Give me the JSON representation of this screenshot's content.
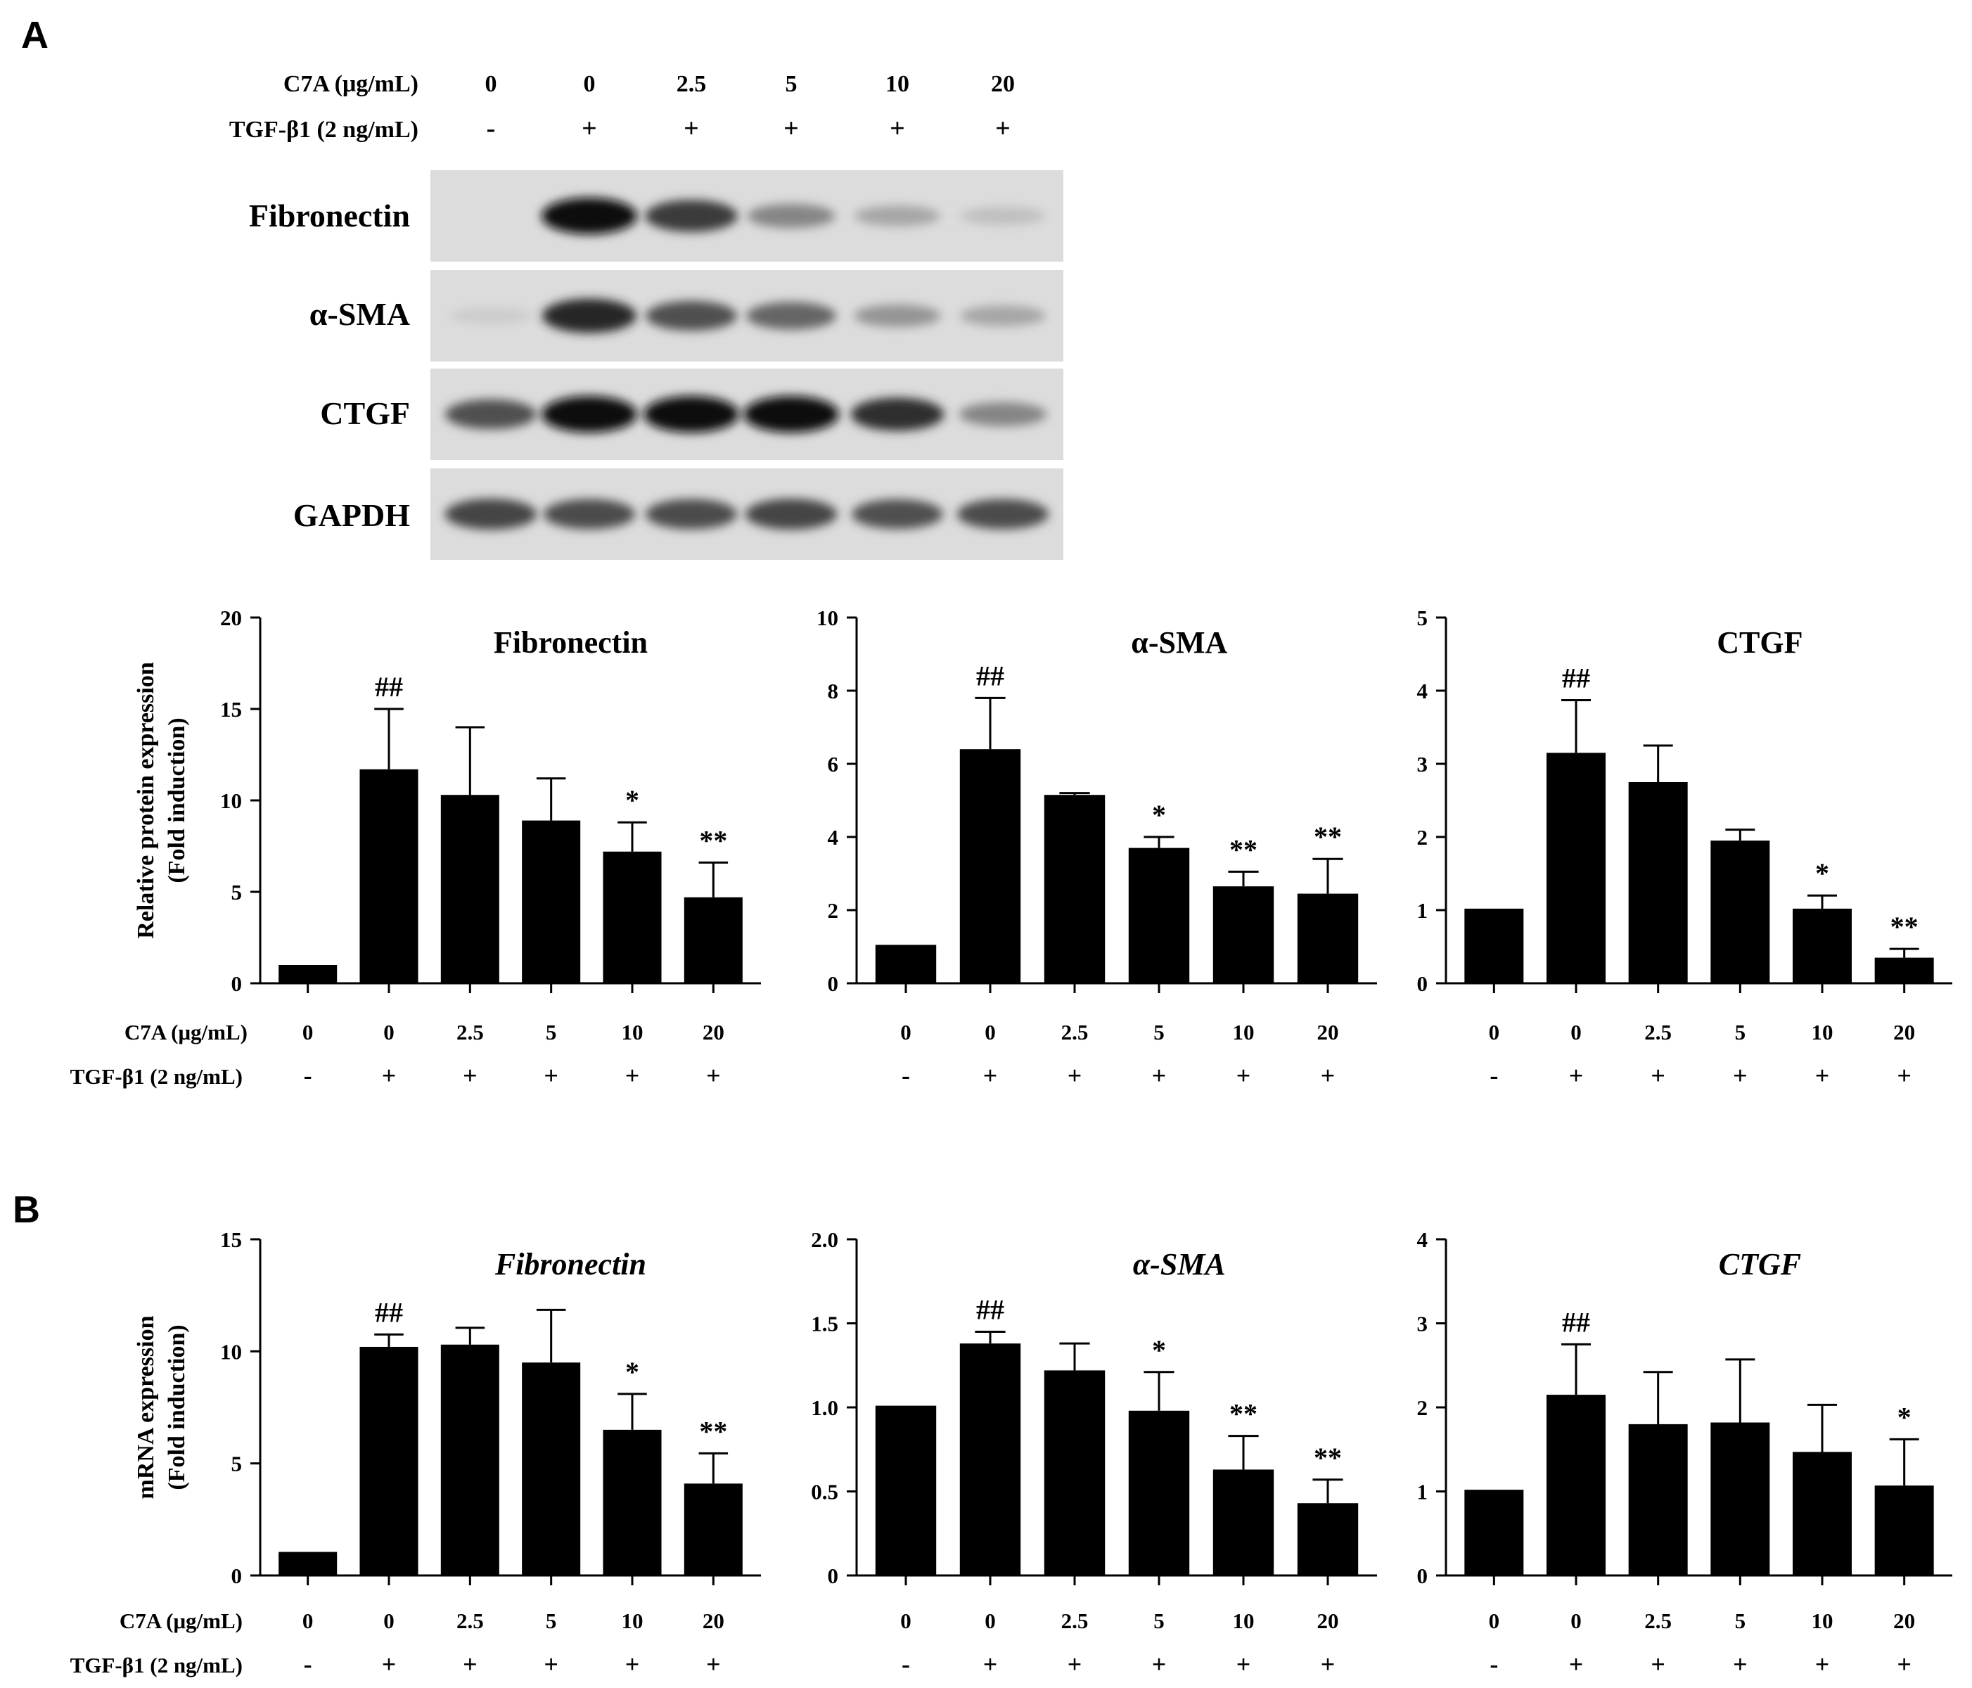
{
  "panels": {
    "a": "A",
    "b": "B"
  },
  "treatment": {
    "c7a_label": "C7A (μg/mL)",
    "tgf_label": "TGF-β1 (2 ng/mL)",
    "c7a_values": [
      "0",
      "0",
      "2.5",
      "5",
      "10",
      "20"
    ],
    "tgf_values": [
      "-",
      "+",
      "+",
      "+",
      "+",
      "+"
    ]
  },
  "blot": {
    "proteins": [
      "Fibronectin",
      "α-SMA",
      "CTGF",
      "GAPDH"
    ],
    "band_intensity": [
      [
        0.0,
        1.0,
        0.8,
        0.45,
        0.3,
        0.18
      ],
      [
        0.12,
        0.9,
        0.7,
        0.6,
        0.38,
        0.3
      ],
      [
        0.7,
        1.0,
        1.0,
        1.0,
        0.85,
        0.45
      ],
      [
        0.75,
        0.72,
        0.72,
        0.75,
        0.7,
        0.72
      ]
    ]
  },
  "chart_data": [
    {
      "type": "bar",
      "panel": "A",
      "title": "Fibronectin",
      "title_italic": false,
      "ylabel": [
        "Relative protein expression",
        "(Fold induction)"
      ],
      "ylim": [
        0,
        20
      ],
      "yticks": [
        "0",
        "5",
        "10",
        "15",
        "20"
      ],
      "ytick_values": [
        0,
        5,
        10,
        15,
        20
      ],
      "categories": [
        "0|-",
        "0|+",
        "2.5|+",
        "5|+",
        "10|+",
        "20|+"
      ],
      "values": [
        1.0,
        11.7,
        10.3,
        8.9,
        7.2,
        4.7
      ],
      "errors": [
        0,
        3.3,
        3.7,
        2.3,
        1.6,
        1.9
      ],
      "annotations": [
        "",
        "##",
        "",
        "",
        "*",
        "**"
      ]
    },
    {
      "type": "bar",
      "panel": "A",
      "title": "α-SMA",
      "title_italic": false,
      "ylabel": [],
      "ylim": [
        0,
        10
      ],
      "yticks": [
        "0",
        "2",
        "4",
        "6",
        "8",
        "10"
      ],
      "ytick_values": [
        0,
        2,
        4,
        6,
        8,
        10
      ],
      "categories": [
        "0|-",
        "0|+",
        "2.5|+",
        "5|+",
        "10|+",
        "20|+"
      ],
      "values": [
        1.05,
        6.4,
        5.15,
        3.7,
        2.65,
        2.45
      ],
      "errors": [
        0,
        1.4,
        0.05,
        0.3,
        0.4,
        0.95
      ],
      "annotations": [
        "",
        "##",
        "",
        "*",
        "**",
        "**"
      ]
    },
    {
      "type": "bar",
      "panel": "A",
      "title": "CTGF",
      "title_italic": false,
      "ylabel": [],
      "ylim": [
        0,
        5
      ],
      "yticks": [
        "0",
        "1",
        "2",
        "3",
        "4",
        "5"
      ],
      "ytick_values": [
        0,
        1,
        2,
        3,
        4,
        5
      ],
      "categories": [
        "0|-",
        "0|+",
        "2.5|+",
        "5|+",
        "10|+",
        "20|+"
      ],
      "values": [
        1.02,
        3.15,
        2.75,
        1.95,
        1.02,
        0.35
      ],
      "errors": [
        0,
        0.72,
        0.5,
        0.15,
        0.18,
        0.12
      ],
      "annotations": [
        "",
        "##",
        "",
        "",
        "*",
        "**"
      ]
    },
    {
      "type": "bar",
      "panel": "B",
      "title": "Fibronectin",
      "title_italic": true,
      "ylabel": [
        "mRNA expression",
        "(Fold induction)"
      ],
      "ylim": [
        0,
        15
      ],
      "yticks": [
        "0",
        "5",
        "10",
        "15"
      ],
      "ytick_values": [
        0,
        5,
        10,
        15
      ],
      "categories": [
        "0|-",
        "0|+",
        "2.5|+",
        "5|+",
        "10|+",
        "20|+"
      ],
      "values": [
        1.05,
        10.2,
        10.3,
        9.5,
        6.5,
        4.1
      ],
      "errors": [
        0,
        0.55,
        0.75,
        2.35,
        1.6,
        1.35
      ],
      "annotations": [
        "",
        "##",
        "",
        "",
        "*",
        "**"
      ]
    },
    {
      "type": "bar",
      "panel": "B",
      "title": "α-SMA",
      "title_italic": true,
      "ylabel": [],
      "ylim": [
        0,
        2.0
      ],
      "yticks": [
        "0",
        "0.5",
        "1.0",
        "1.5",
        "2.0"
      ],
      "ytick_values": [
        0,
        0.5,
        1.0,
        1.5,
        2.0
      ],
      "categories": [
        "0|-",
        "0|+",
        "2.5|+",
        "5|+",
        "10|+",
        "20|+"
      ],
      "values": [
        1.01,
        1.38,
        1.22,
        0.98,
        0.63,
        0.43
      ],
      "errors": [
        0,
        0.07,
        0.16,
        0.23,
        0.2,
        0.14
      ],
      "annotations": [
        "",
        "##",
        "",
        "*",
        "**",
        "**"
      ]
    },
    {
      "type": "bar",
      "panel": "B",
      "title": "CTGF",
      "title_italic": true,
      "ylabel": [],
      "ylim": [
        0,
        4
      ],
      "yticks": [
        "0",
        "1",
        "2",
        "3",
        "4"
      ],
      "ytick_values": [
        0,
        1,
        2,
        3,
        4
      ],
      "categories": [
        "0|-",
        "0|+",
        "2.5|+",
        "5|+",
        "10|+",
        "20|+"
      ],
      "values": [
        1.02,
        2.15,
        1.8,
        1.82,
        1.47,
        1.07
      ],
      "errors": [
        0,
        0.6,
        0.62,
        0.75,
        0.56,
        0.55
      ],
      "annotations": [
        "",
        "##",
        "",
        "",
        "",
        "*"
      ]
    }
  ]
}
